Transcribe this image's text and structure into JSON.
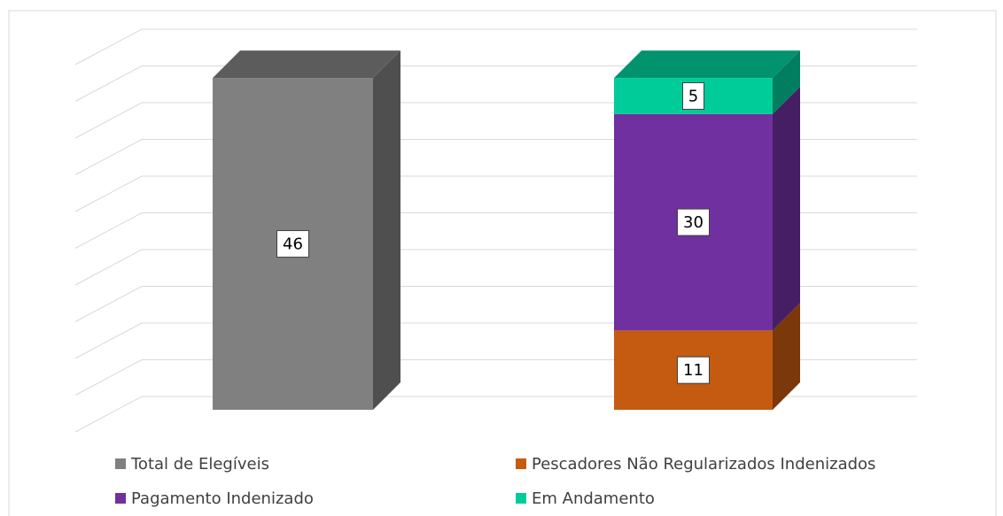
{
  "chart_data": {
    "type": "bar3d_stacked",
    "categories": [
      null,
      null
    ],
    "series": [
      {
        "name": "Total de Elegíveis",
        "color": "#808080",
        "values": [
          46,
          null
        ]
      },
      {
        "name": "Pescadores Não Regularizados Indenizados",
        "color": "#c55a11",
        "values": [
          null,
          11
        ]
      },
      {
        "name": "Pagamento Indenizado",
        "color": "#7030a0",
        "values": [
          null,
          30
        ]
      },
      {
        "name": "Em Andamento",
        "color": "#00cc99",
        "values": [
          null,
          5
        ]
      }
    ],
    "ylim": [
      0,
      50
    ],
    "yticks": [
      0,
      5,
      10,
      15,
      20,
      25,
      30,
      35,
      40,
      45,
      50
    ],
    "grid": true,
    "legend": "bottom"
  }
}
